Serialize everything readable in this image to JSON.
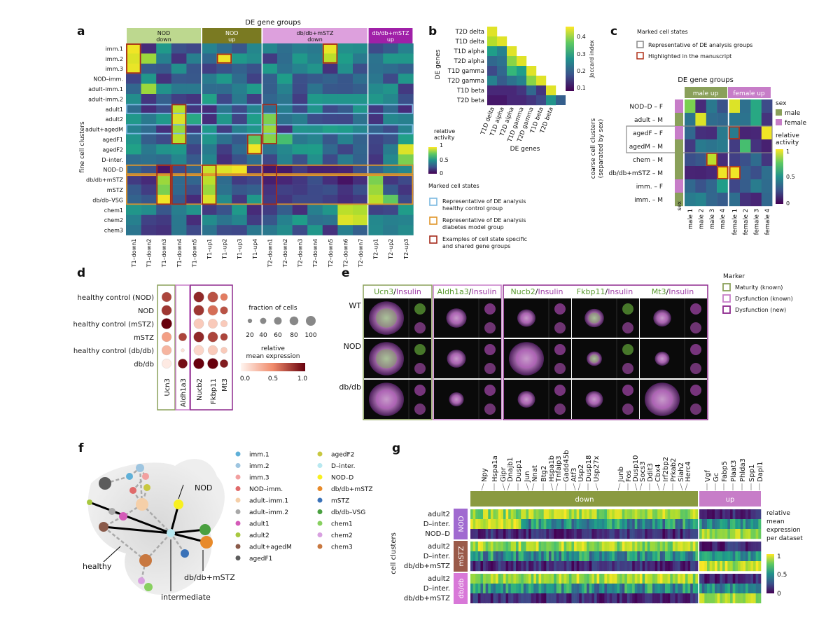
{
  "panel_labels": [
    "a",
    "b",
    "c",
    "d",
    "e",
    "f",
    "g"
  ],
  "panel_a": {
    "title": "DE gene groups",
    "ylabel": "fine cell clusters",
    "group_headers": [
      {
        "line1": "NOD",
        "line2": "down",
        "color": "#bdd88f"
      },
      {
        "line1": "NOD",
        "line2": "up",
        "color": "#7a7a22"
      },
      {
        "line1": "db/db+mSTZ",
        "line2": "down",
        "color": "#dda0dd"
      },
      {
        "line1": "db/db+mSTZ",
        "line2": "up",
        "color": "#a020a8"
      }
    ],
    "rows": [
      "imm.1",
      "imm.2",
      "imm.3",
      "NOD–imm.",
      "adult–imm.1",
      "adult–imm.2",
      "adult1",
      "adult2",
      "adult+agedM",
      "agedF1",
      "agedF2",
      "D–inter.",
      "NOD–D",
      "db/db+mSTZ",
      "mSTZ",
      "db/db–VSG",
      "chem1",
      "chem2",
      "chem3"
    ],
    "cols": [
      "T1–down1",
      "T1–down2",
      "T1–down3",
      "T1–down4",
      "T1–down5",
      "T1–up1",
      "T1–up2",
      "T1–up3",
      "T1–up4",
      "T2–down1",
      "T2–down2",
      "T2–down3",
      "T2–down4",
      "T2–down5",
      "T2–down6",
      "T2–down7",
      "T2–up1",
      "T2–up2",
      "T2–up3"
    ],
    "colorbar": {
      "label": "relative activity",
      "ticks": [
        "1",
        "0.5",
        "0"
      ]
    },
    "marked_title": "Marked cell states",
    "marked_items": [
      {
        "text1": "Representative of DE analysis",
        "text2": "healthy control group",
        "color": "#7ab8e0"
      },
      {
        "text1": "Representative of DE analysis",
        "text2": "diabetes model group",
        "color": "#e0962a"
      },
      {
        "text1": "Examples of cell state specific",
        "text2": "and shared gene groups",
        "color": "#a52a1a"
      }
    ]
  },
  "panel_b": {
    "labels": [
      "T2D delta",
      "T1D delta",
      "T1D alpha",
      "T2D alpha",
      "T1D gamma",
      "T2D gamma",
      "T1D beta",
      "T2D beta"
    ],
    "ylabel": "DE genes",
    "xlabel": "DE genes",
    "colorbar": {
      "label": "Jaccard index",
      "ticks": [
        "0.4",
        "0.3",
        "0.2",
        "0.1"
      ]
    }
  },
  "panel_c": {
    "legend_title": "Marked cell states",
    "legend_items": [
      "Representative of DE analysis groups",
      "Highlighted in the manuscript"
    ],
    "title": "DE gene groups",
    "group_headers": [
      "male up",
      "female up"
    ],
    "rows": [
      "NOD–D – F",
      "adult – M",
      "agedF – F",
      "agedM – M",
      "chem – M",
      "db/db+mSTZ – M",
      "imm. – F",
      "imm. – M"
    ],
    "row_sex": [
      "F",
      "M",
      "F",
      "M",
      "M",
      "M",
      "F",
      "M"
    ],
    "cols": [
      "male 1",
      "male 2",
      "male 3",
      "male 4",
      "female 1",
      "female 2",
      "female 3",
      "female 4"
    ],
    "sex_label": "sex",
    "ylabel1": "coarse cell clusters",
    "ylabel2": "(separated by sex)",
    "sex_legend": {
      "title": "sex",
      "male": "male",
      "female": "female",
      "male_color": "#8aa05a",
      "female_color": "#c77dc8"
    },
    "colorbar": {
      "label": "relative activity",
      "ticks": [
        "1",
        "0.5",
        "0"
      ]
    }
  },
  "panel_d": {
    "rows": [
      "healthy control (NOD)",
      "NOD",
      "healthy control (mSTZ)",
      "mSTZ",
      "healthy control (db/db)",
      "db/db"
    ],
    "cols": [
      "Ucn3",
      "Aldh1a3",
      "Nucb2",
      "Fkbp11",
      "Mt3"
    ],
    "fraction_title": "fraction of cells",
    "fraction_ticks": [
      "20",
      "40",
      "60",
      "80",
      "100"
    ],
    "expr_title1": "relative",
    "expr_title2": "mean expression",
    "expr_ticks": [
      "0.0",
      "0.5",
      "1.0"
    ],
    "dots": [
      [
        [
          80,
          0.75
        ],
        [
          0,
          0
        ],
        [
          90,
          0.85
        ],
        [
          90,
          0.7
        ],
        [
          45,
          0.55
        ]
      ],
      [
        [
          85,
          0.8
        ],
        [
          0,
          0
        ],
        [
          90,
          0.8
        ],
        [
          85,
          0.6
        ],
        [
          50,
          0.7
        ]
      ],
      [
        [
          95,
          1.0
        ],
        [
          0,
          0
        ],
        [
          85,
          0.2
        ],
        [
          75,
          0.2
        ],
        [
          40,
          0.2
        ]
      ],
      [
        [
          80,
          0.4
        ],
        [
          55,
          0.75
        ],
        [
          90,
          0.85
        ],
        [
          85,
          0.75
        ],
        [
          45,
          0.75
        ]
      ],
      [
        [
          80,
          0.3
        ],
        [
          10,
          0.1
        ],
        [
          85,
          0.15
        ],
        [
          80,
          0.2
        ],
        [
          35,
          0.2
        ]
      ],
      [
        [
          75,
          0.05
        ],
        [
          75,
          0.95
        ],
        [
          95,
          1.0
        ],
        [
          95,
          1.0
        ],
        [
          55,
          0.9
        ]
      ]
    ]
  },
  "panel_e": {
    "headers": [
      {
        "gene": "Ucn3",
        "stain": "Insulin"
      },
      {
        "gene": "Aldh1a3",
        "stain": "Insulin"
      },
      {
        "gene": "Nucb2",
        "stain": "Insulin"
      },
      {
        "gene": "Fkbp11",
        "stain": "Insulin"
      },
      {
        "gene": "Mt3",
        "stain": "Insulin"
      }
    ],
    "rows": [
      "WT",
      "NOD",
      "db/db"
    ],
    "legend_title": "Marker",
    "legend_items": [
      {
        "text": "Maturity (known)",
        "color": "#8aa05a"
      },
      {
        "text": "Dysfunction (known)",
        "color": "#c77dc8"
      },
      {
        "text": "Dysfunction (new)",
        "color": "#8e2a8e"
      }
    ]
  },
  "panel_f": {
    "labels": [
      "NOD",
      "healthy",
      "db/db+mSTZ",
      "intermediate"
    ],
    "legend": [
      {
        "name": "imm.1",
        "color": "#5fb0d8"
      },
      {
        "name": "imm.2",
        "color": "#9ec5e0"
      },
      {
        "name": "imm.3",
        "color": "#f2a0a0"
      },
      {
        "name": "NOD–imm.",
        "color": "#e06a6a"
      },
      {
        "name": "adult–imm.1",
        "color": "#f5cfa8"
      },
      {
        "name": "adult–imm.2",
        "color": "#a8a8a8"
      },
      {
        "name": "adult1",
        "color": "#d45bb8"
      },
      {
        "name": "adult2",
        "color": "#a8c840"
      },
      {
        "name": "adult+agedM",
        "color": "#8a5a4a"
      },
      {
        "name": "agedF1",
        "color": "#5c5c5c"
      },
      {
        "name": "agedF2",
        "color": "#c8c840"
      },
      {
        "name": "D–inter.",
        "color": "#b8e8f0"
      },
      {
        "name": "NOD–D",
        "color": "#f8f020"
      },
      {
        "name": "db/db+mSTZ",
        "color": "#e88a2a"
      },
      {
        "name": "mSTZ",
        "color": "#3a72b8"
      },
      {
        "name": "db/db–VSG",
        "color": "#4aa040"
      },
      {
        "name": "chem1",
        "color": "#88d060"
      },
      {
        "name": "chem2",
        "color": "#d8a0e0"
      },
      {
        "name": "chem3",
        "color": "#c87840"
      }
    ]
  },
  "panel_g": {
    "genes_down": [
      "Npy",
      "Hspa1a",
      "Gipr",
      "Dnajb1",
      "Dusp1",
      "Jun",
      "Nnat",
      "Btg2",
      "Hspa1b",
      "Tnfaip3",
      "Gadd45b",
      "Atf3",
      "Usp2",
      "Dusp18",
      "Usp27x",
      "Junb",
      "Fos",
      "Dusp10",
      "Socs3",
      "Ddit3",
      "Cbx4",
      "Irf2bp2",
      "Prkab2",
      "Siah2",
      "Herc4"
    ],
    "genes_up": [
      "Vgf",
      "Gc",
      "Fabp5",
      "Plaat3",
      "Phlda3",
      "Spp1",
      "Dapl1"
    ],
    "down_label": "down",
    "up_label": "up",
    "ylabel": "cell clusters",
    "datasets": [
      {
        "name": "NOD",
        "color": "#a06ad0",
        "rows": [
          "adult2",
          "D–inter.",
          "NOD–D"
        ]
      },
      {
        "name": "mSTZ",
        "color": "#9a5a4a",
        "rows": [
          "adult2",
          "D–inter.",
          "db/db+mSTZ"
        ]
      },
      {
        "name": "db/db",
        "color": "#d878d8",
        "rows": [
          "adult2",
          "D–inter.",
          "db/db+mSTZ"
        ]
      }
    ],
    "down_color": "#8a9a40",
    "up_color": "#c77dc8",
    "colorbar": {
      "label1": "relative",
      "label2": "mean",
      "label3": "expression",
      "label4": "per dataset",
      "ticks": [
        "1",
        "0.5",
        "0"
      ]
    }
  }
}
